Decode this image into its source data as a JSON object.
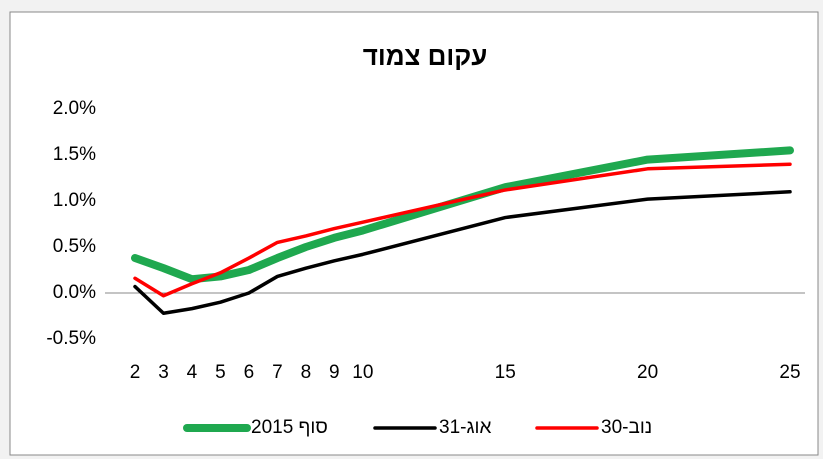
{
  "chart_data": {
    "type": "line",
    "title": "עקום צמוד",
    "x": [
      2,
      3,
      4,
      5,
      6,
      7,
      8,
      9,
      10,
      15,
      20,
      25
    ],
    "xlim": [
      2,
      25
    ],
    "xticks": [
      2,
      3,
      4,
      5,
      6,
      7,
      8,
      9,
      10,
      15,
      20,
      25
    ],
    "ylim": [
      -0.5,
      2.0
    ],
    "yticks": [
      {
        "value": -0.5,
        "label": "-0.5%"
      },
      {
        "value": 0.0,
        "label": "0.0%"
      },
      {
        "value": 0.5,
        "label": "0.5%"
      },
      {
        "value": 1.0,
        "label": "1.0%"
      },
      {
        "value": 1.5,
        "label": "1.5%"
      },
      {
        "value": 2.0,
        "label": "2.0%"
      }
    ],
    "grid": false,
    "legend": "bottom",
    "series": [
      {
        "name": "סוף 2015",
        "color": "#1fa84f",
        "width": 8,
        "values": [
          0.38,
          0.27,
          0.15,
          0.18,
          0.25,
          0.38,
          0.5,
          0.6,
          0.68,
          1.15,
          1.45,
          1.55
        ]
      },
      {
        "name": "31-אוג",
        "color": "#000000",
        "width": 3.5,
        "values": [
          0.07,
          -0.22,
          -0.17,
          -0.1,
          0.0,
          0.18,
          0.27,
          0.35,
          0.42,
          0.82,
          1.02,
          1.1
        ]
      },
      {
        "name": "30-נוב",
        "color": "#ff0000",
        "width": 3.5,
        "values": [
          0.16,
          -0.03,
          0.1,
          0.22,
          0.38,
          0.55,
          0.62,
          0.7,
          0.77,
          1.12,
          1.35,
          1.4
        ]
      }
    ]
  }
}
